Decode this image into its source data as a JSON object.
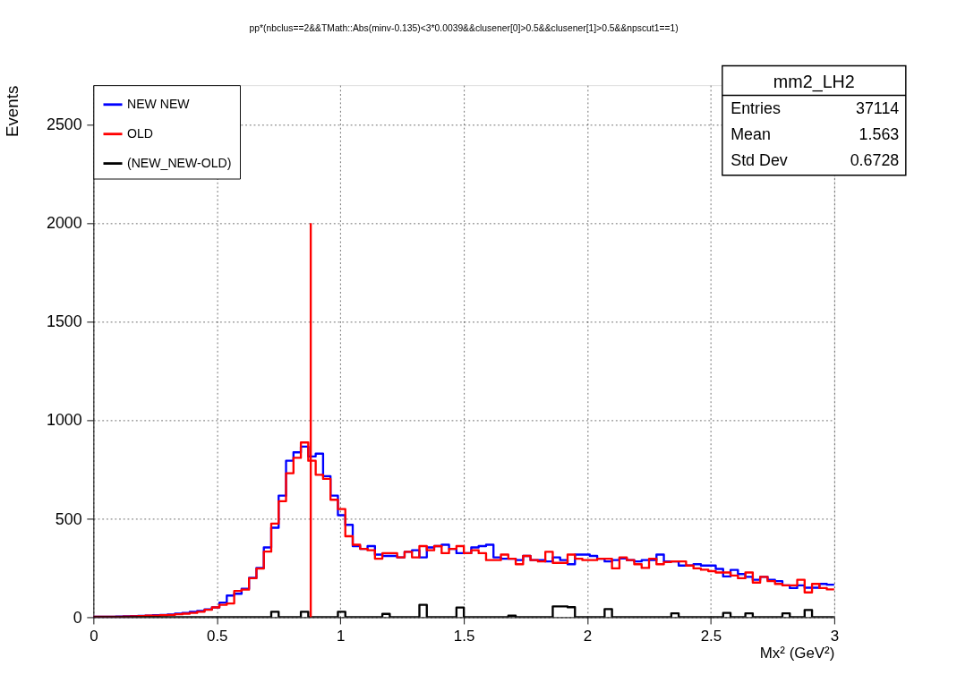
{
  "chart_data": {
    "type": "histogram",
    "title": "pp*(nbclus==2&&TMath::Abs(minv-0.135)<3*0.0039&&clusener[0]>0.5&&clusener[1]>0.5&&npscut1==1)",
    "xlabel": "Mx² (GeV²)",
    "ylabel": "Events",
    "bins": [
      0,
      0.03,
      0.06,
      0.09,
      0.12,
      0.15,
      0.18,
      0.21,
      0.24,
      0.27,
      0.3,
      0.33,
      0.36,
      0.39,
      0.42,
      0.45,
      0.48,
      0.51,
      0.54,
      0.57,
      0.6,
      0.63,
      0.66,
      0.69,
      0.72,
      0.75,
      0.78,
      0.81,
      0.84,
      0.87,
      0.9,
      0.93,
      0.96,
      0.99,
      1.02,
      1.05,
      1.08,
      1.11,
      1.14,
      1.17,
      1.2,
      1.23,
      1.26,
      1.29,
      1.32,
      1.35,
      1.38,
      1.41,
      1.44,
      1.47,
      1.5,
      1.53,
      1.56,
      1.59,
      1.62,
      1.65,
      1.68,
      1.71,
      1.74,
      1.77,
      1.8,
      1.83,
      1.86,
      1.89,
      1.92,
      1.95,
      1.98,
      2.01,
      2.04,
      2.07,
      2.1,
      2.13,
      2.16,
      2.19,
      2.22,
      2.25,
      2.28,
      2.31,
      2.34,
      2.37,
      2.4,
      2.43,
      2.46,
      2.49,
      2.52,
      2.55,
      2.58,
      2.61,
      2.64,
      2.67,
      2.7,
      2.73,
      2.76,
      2.79,
      2.82,
      2.85,
      2.88,
      2.91,
      2.94,
      2.97,
      3.0
    ],
    "series": [
      {
        "name": "NEW NEW",
        "color": "#0000ff",
        "values": [
          2,
          2,
          3,
          4,
          5,
          6,
          7,
          8,
          10,
          12,
          14,
          18,
          22,
          28,
          32,
          40,
          50,
          74,
          110,
          119,
          145,
          200,
          250,
          354,
          454,
          617,
          794,
          837,
          866,
          816,
          830,
          716,
          617,
          518,
          469,
          361,
          347,
          361,
          318,
          311,
          311,
          304,
          332,
          340,
          304,
          354,
          361,
          368,
          347,
          325,
          325,
          354,
          361,
          368,
          304,
          297,
          297,
          290,
          311,
          290,
          290,
          283,
          304,
          290,
          269,
          318,
          318,
          311,
          297,
          283,
          290,
          298,
          290,
          283,
          290,
          290,
          318,
          283,
          283,
          262,
          262,
          269,
          262,
          262,
          245,
          207,
          240,
          219,
          205,
          190,
          205,
          190,
          183,
          162,
          148,
          162,
          150,
          150,
          169,
          165
        ]
      },
      {
        "name": "OLD",
        "color": "#ff0000",
        "values": [
          2,
          2,
          3,
          3,
          4,
          5,
          6,
          8,
          8,
          10,
          12,
          15,
          18,
          22,
          28,
          38,
          50,
          63,
          70,
          133,
          140,
          198,
          247,
          333,
          475,
          589,
          731,
          809,
          887,
          794,
          723,
          702,
          596,
          549,
          411,
          368,
          347,
          340,
          297,
          325,
          325,
          304,
          332,
          304,
          361,
          340,
          361,
          325,
          347,
          361,
          325,
          340,
          325,
          290,
          290,
          318,
          297,
          269,
          311,
          290,
          283,
          332,
          276,
          276,
          318,
          297,
          290,
          290,
          297,
          297,
          248,
          304,
          290,
          269,
          250,
          297,
          269,
          280,
          283,
          283,
          262,
          248,
          241,
          234,
          227,
          227,
          212,
          198,
          227,
          176,
          205,
          183,
          169,
          162,
          162,
          190,
          126,
          169,
          148,
          141
        ]
      },
      {
        "name": "(NEW_NEW-OLD)",
        "color": "#000000",
        "values": [
          0,
          0,
          0,
          0,
          0,
          0,
          0,
          0,
          0,
          0,
          0,
          0,
          0,
          0,
          0,
          0,
          0,
          0,
          0,
          0,
          0,
          0,
          0,
          0,
          28,
          0,
          0,
          0,
          28,
          0,
          0,
          0,
          0,
          28,
          0,
          0,
          0,
          0,
          0,
          17,
          0,
          0,
          0,
          0,
          63,
          0,
          0,
          0,
          0,
          49,
          0,
          0,
          0,
          0,
          0,
          0,
          8,
          0,
          0,
          0,
          0,
          0,
          55,
          55,
          51,
          0,
          0,
          0,
          0,
          41,
          0,
          0,
          0,
          0,
          0,
          0,
          0,
          0,
          20,
          0,
          0,
          0,
          0,
          0,
          0,
          22,
          0,
          0,
          20,
          0,
          0,
          0,
          0,
          20,
          0,
          0,
          37,
          0,
          0,
          0
        ]
      },
      {
        "type": "line",
        "color": "#ff0000",
        "x": [
          0.88,
          0.88
        ],
        "values": [
          0,
          2000
        ]
      }
    ],
    "xlim": [
      0,
      3
    ],
    "xticks": [
      0,
      0.5,
      1,
      1.5,
      2,
      2.5,
      3
    ],
    "ylim": [
      0,
      2700
    ],
    "yticks": [
      0,
      500,
      1000,
      1500,
      2000,
      2500
    ],
    "grid": true,
    "legend": "top left",
    "line_style": "solid",
    "marker": "none",
    "annotations": [
      "mm2_LH2",
      "Entries 37114",
      "Mean 1.563",
      "Std Dev 0.6728"
    ]
  }
}
